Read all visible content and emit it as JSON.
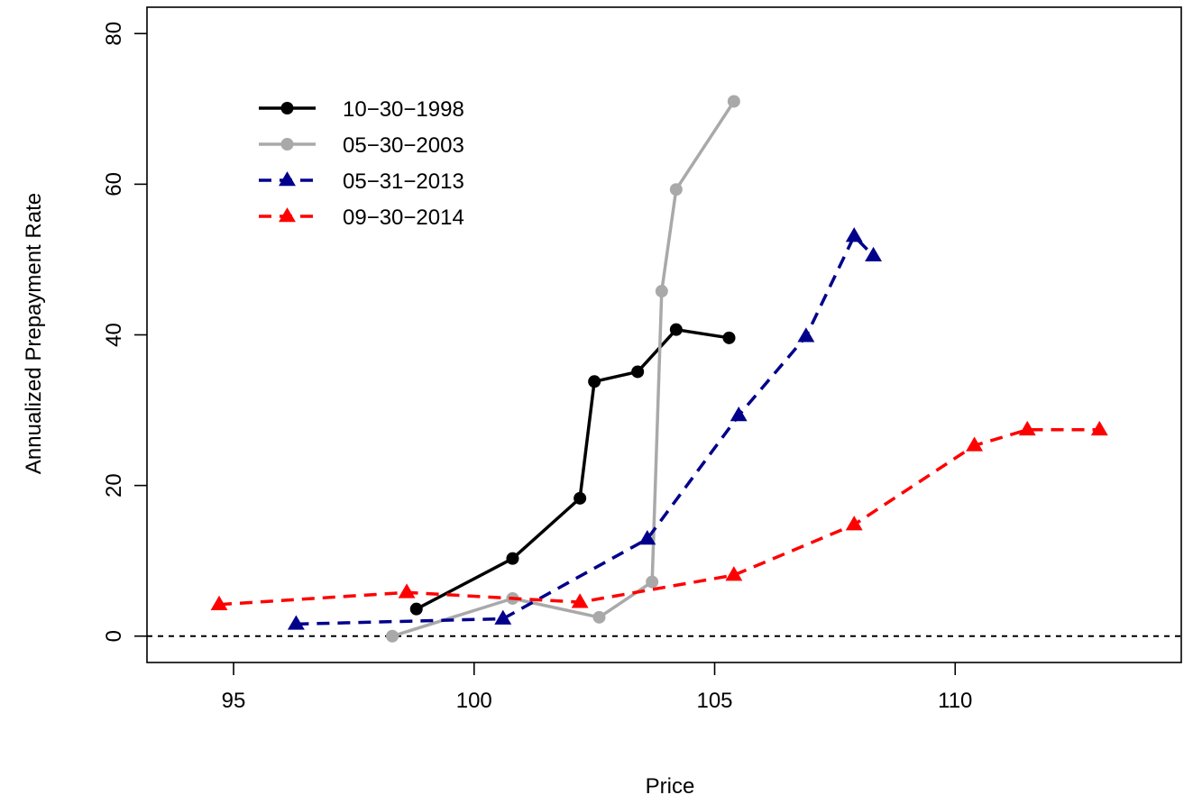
{
  "chart_data": {
    "type": "line",
    "title": "",
    "xlabel": "Price",
    "ylabel": "Annualized Prepayment Rate",
    "xlim": [
      93.2,
      114.7
    ],
    "ylim": [
      -3.5,
      83.5
    ],
    "xticks": [
      "95",
      "100",
      "105",
      "110"
    ],
    "yticks": [
      "0",
      "20",
      "40",
      "60",
      "80"
    ],
    "reference_line": {
      "y": 0,
      "style": "dashed",
      "color": "#000000"
    },
    "legend_position": "top-left",
    "series": [
      {
        "name": "10−30−1998",
        "color": "#000000",
        "dash": "solid",
        "marker": "circle",
        "points": [
          [
            98.8,
            3.6
          ],
          [
            100.8,
            10.3
          ],
          [
            102.2,
            18.3
          ],
          [
            102.5,
            33.8
          ],
          [
            103.4,
            35.1
          ],
          [
            104.2,
            40.7
          ],
          [
            105.3,
            39.6
          ]
        ]
      },
      {
        "name": "05−30−2003",
        "color": "#a9a9a9",
        "dash": "solid",
        "marker": "circle",
        "points": [
          [
            98.3,
            0.0
          ],
          [
            100.8,
            5.0
          ],
          [
            102.6,
            2.5
          ],
          [
            103.7,
            7.2
          ],
          [
            103.9,
            45.8
          ],
          [
            104.2,
            59.3
          ],
          [
            105.4,
            71.0
          ]
        ]
      },
      {
        "name": "05−31−2013",
        "color": "#00008b",
        "dash": "dashed",
        "marker": "triangle",
        "points": [
          [
            96.3,
            1.6
          ],
          [
            100.6,
            2.3
          ],
          [
            103.6,
            12.9
          ],
          [
            105.5,
            29.3
          ],
          [
            106.9,
            39.8
          ],
          [
            107.9,
            53.1
          ],
          [
            108.3,
            50.5
          ]
        ]
      },
      {
        "name": "09−30−2014",
        "color": "#ff0000",
        "dash": "dashed",
        "marker": "triangle",
        "points": [
          [
            94.7,
            4.2
          ],
          [
            98.6,
            5.8
          ],
          [
            102.2,
            4.5
          ],
          [
            105.4,
            8.1
          ],
          [
            107.9,
            14.8
          ],
          [
            110.4,
            25.3
          ],
          [
            111.5,
            27.4
          ],
          [
            113.0,
            27.4
          ]
        ]
      }
    ]
  }
}
